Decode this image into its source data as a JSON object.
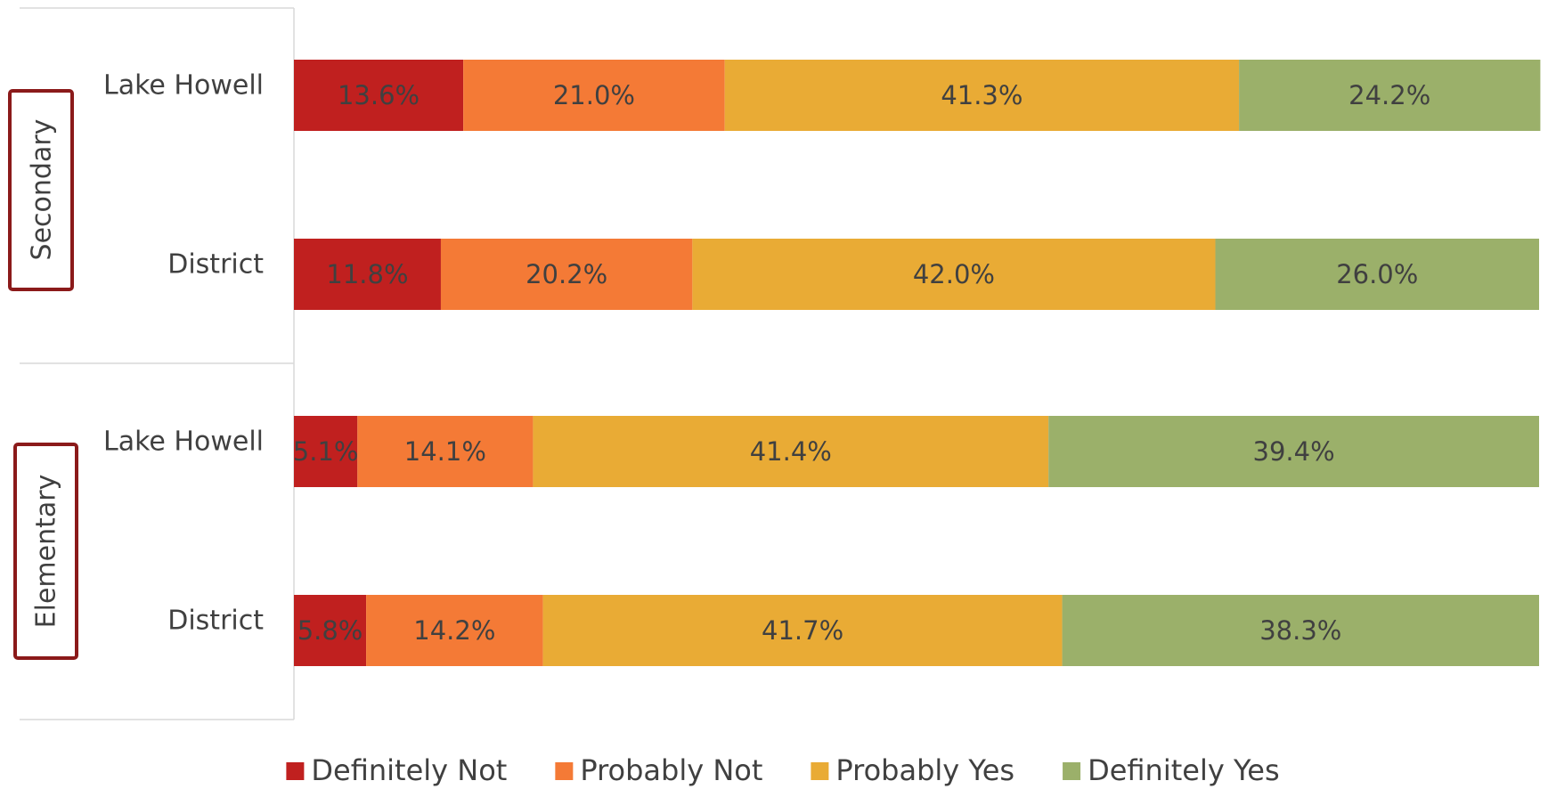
{
  "chart_data": {
    "type": "stacked-bar-horizontal",
    "groups": [
      "Secondary",
      "Elementary"
    ],
    "categories": [
      "Lake Howell",
      "District",
      "Lake Howell",
      "District"
    ],
    "xlim": [
      0,
      100
    ],
    "legend": "bottom",
    "series": [
      {
        "name": "Definitely Not",
        "color": "#c0201f",
        "values": [
          13.6,
          11.8,
          5.1,
          5.8
        ],
        "value_labels": [
          "13.6%",
          "11.8%",
          "5.1%",
          "5.8%"
        ]
      },
      {
        "name": "Probably Not",
        "color": "#f47a36",
        "values": [
          21.0,
          20.2,
          14.1,
          14.2
        ],
        "value_labels": [
          "21.0%",
          "20.2%",
          "14.1%",
          "14.2%"
        ]
      },
      {
        "name": "Probably Yes",
        "color": "#e9ab35",
        "values": [
          41.3,
          42.0,
          41.4,
          41.7
        ],
        "value_labels": [
          "41.3%",
          "42.0%",
          "41.4%",
          "41.7%"
        ]
      },
      {
        "name": "Definitely Yes",
        "color": "#9bb06a",
        "values": [
          24.2,
          26.0,
          39.4,
          38.3
        ],
        "value_labels": [
          "24.2%",
          "26.0%",
          "39.4%",
          "38.3%"
        ]
      }
    ]
  }
}
